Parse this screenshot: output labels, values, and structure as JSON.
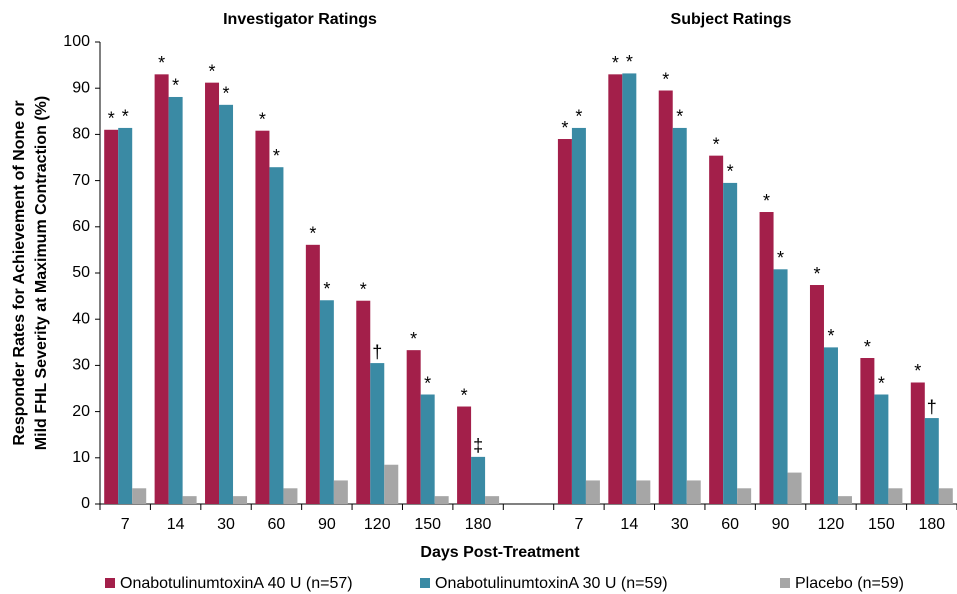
{
  "chart_data": {
    "type": "bar",
    "panel_titles": [
      "Investigator Ratings",
      "Subject Ratings"
    ],
    "y_label": [
      "Responder Rates for Achievement of None or",
      "Mild FHL Severity at Maximum Contraction (%)"
    ],
    "x_label": "Days Post-Treatment",
    "categories": [
      "7",
      "14",
      "30",
      "60",
      "90",
      "120",
      "150",
      "180",
      null,
      "7",
      "14",
      "30",
      "60",
      "90",
      "120",
      "150",
      "180"
    ],
    "series": [
      {
        "name": "OnabotulinumtoxinA 40 U (n=57)",
        "color": "#a31f4a",
        "values": [
          81,
          93,
          91.2,
          80.8,
          56.1,
          44,
          33.3,
          21.1,
          null,
          79,
          93,
          89.5,
          75.4,
          63.2,
          47.4,
          31.6,
          26.3
        ],
        "annotations": [
          "*",
          "*",
          "*",
          "*",
          "*",
          "*",
          "*",
          "*",
          null,
          "*",
          "*",
          "*",
          "*",
          "*",
          "*",
          "*",
          "*"
        ]
      },
      {
        "name": "OnabotulinumtoxinA 30 U (n=59)",
        "color": "#3a8aa4",
        "values": [
          81.4,
          88.1,
          86.4,
          72.9,
          44.1,
          30.5,
          23.7,
          10.2,
          null,
          81.4,
          93.2,
          81.4,
          69.5,
          50.8,
          33.9,
          23.7,
          18.6
        ],
        "annotations": [
          "*",
          "*",
          "*",
          "*",
          "*",
          "†",
          "*",
          "‡",
          null,
          "*",
          "*",
          "*",
          "*",
          "*",
          "*",
          "*",
          "†"
        ]
      },
      {
        "name": "Placebo (n=59)",
        "color": "#a6a6a6",
        "values": [
          3.4,
          1.7,
          1.7,
          3.4,
          5.1,
          8.5,
          1.7,
          1.7,
          null,
          5.1,
          5.1,
          5.1,
          3.4,
          6.8,
          1.7,
          3.4,
          3.4
        ]
      }
    ],
    "ylim": [
      0,
      100
    ],
    "yticks": [
      0,
      10,
      20,
      30,
      40,
      50,
      60,
      70,
      80,
      90,
      100
    ],
    "grid": false
  }
}
